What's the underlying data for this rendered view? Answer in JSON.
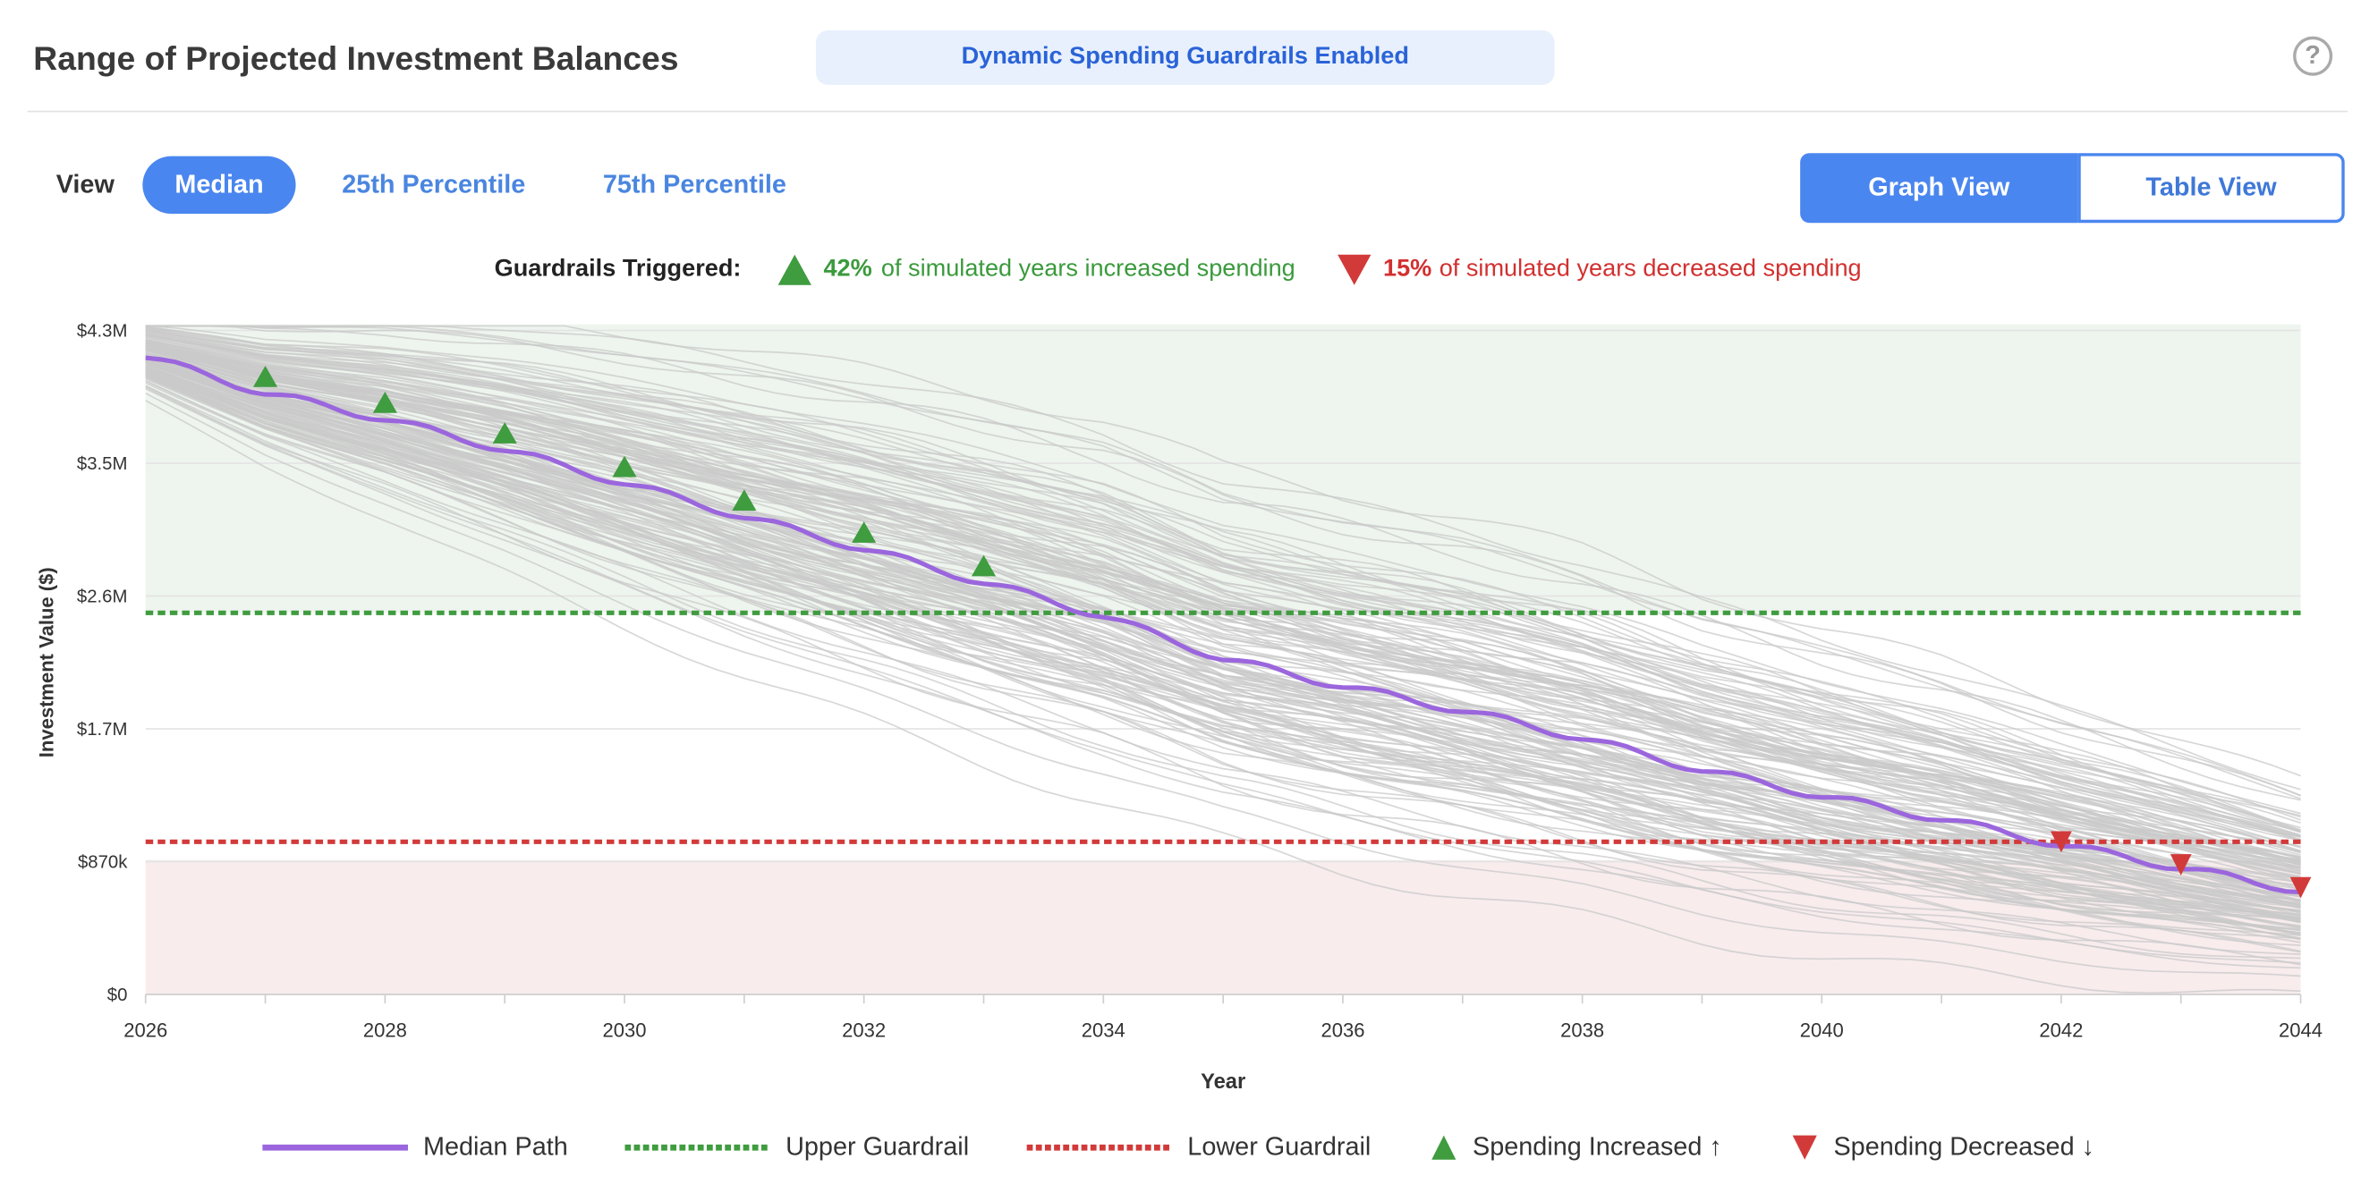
{
  "header": {
    "title": "Range of Projected Investment Balances",
    "banner": "Dynamic Spending Guardrails Enabled",
    "help_icon": "question-circle-icon"
  },
  "view_selector": {
    "label": "View",
    "options": [
      "Median",
      "25th Percentile",
      "75th Percentile"
    ],
    "selected": "Median"
  },
  "view_toggle": {
    "graph_label": "Graph View",
    "table_label": "Table View",
    "selected": "Graph View"
  },
  "guardrails_summary": {
    "label": "Guardrails Triggered:",
    "increased_pct": "42%",
    "increased_text": "of simulated years increased spending",
    "decreased_pct": "15%",
    "decreased_text": "of simulated years decreased spending"
  },
  "legend": {
    "median": "Median Path",
    "upper": "Upper Guardrail",
    "lower": "Lower Guardrail",
    "increased": "Spending Increased ↑",
    "decreased": "Spending Decreased ↓"
  },
  "colors": {
    "median": "#9b66dd",
    "upper": "#3f9c3f",
    "lower": "#d23a3a",
    "paths": "#c9c9c9",
    "upper_zone": "#eef5ee",
    "lower_zone": "#f8eced"
  },
  "chart_data": {
    "type": "line",
    "xlabel": "Year",
    "ylabel": "Investment Value ($)",
    "x_ticks": [
      2026,
      2028,
      2030,
      2032,
      2034,
      2036,
      2038,
      2040,
      2042,
      2044
    ],
    "y_ticks": [
      {
        "value": 0,
        "label": "$0"
      },
      {
        "value": 870000,
        "label": "$870k"
      },
      {
        "value": 1740000,
        "label": "$1.7M"
      },
      {
        "value": 2610000,
        "label": "$2.6M"
      },
      {
        "value": 3480000,
        "label": "$3.5M"
      },
      {
        "value": 4350000,
        "label": "$4.3M"
      }
    ],
    "xlim": [
      2026,
      2044
    ],
    "ylim": [
      0,
      4350000
    ],
    "upper_guardrail": 2500000,
    "lower_guardrail": 1000000,
    "median_path": {
      "name": "Median Path",
      "points": [
        [
          2026,
          4180000
        ],
        [
          2027,
          3940000
        ],
        [
          2028,
          3770000
        ],
        [
          2029,
          3570000
        ],
        [
          2030,
          3350000
        ],
        [
          2031,
          3130000
        ],
        [
          2032,
          2920000
        ],
        [
          2033,
          2700000
        ],
        [
          2034,
          2480000
        ],
        [
          2035,
          2200000
        ],
        [
          2036,
          2020000
        ],
        [
          2037,
          1860000
        ],
        [
          2038,
          1680000
        ],
        [
          2039,
          1470000
        ],
        [
          2040,
          1300000
        ],
        [
          2041,
          1150000
        ],
        [
          2042,
          980000
        ],
        [
          2043,
          830000
        ],
        [
          2044,
          680000
        ]
      ]
    },
    "spending_increased_years": [
      2027,
      2028,
      2029,
      2030,
      2031,
      2032,
      2033
    ],
    "spending_decreased_years": [
      2042,
      2043,
      2044
    ],
    "grid": true
  }
}
